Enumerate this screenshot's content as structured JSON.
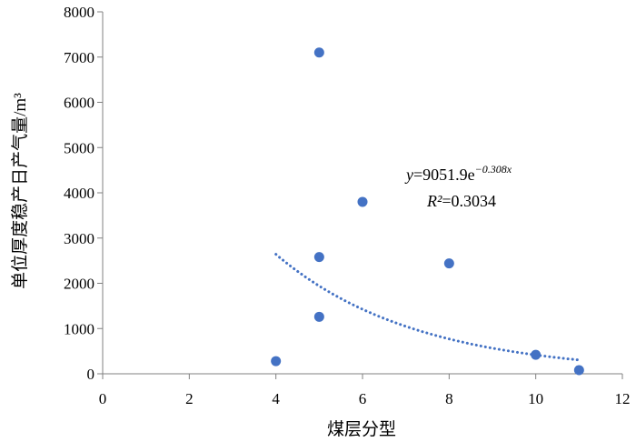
{
  "chart_data": {
    "type": "scatter",
    "title": "",
    "xlabel": "煤层分型",
    "ylabel": "单位厚度稳产日产气量/m³",
    "xlim": [
      0,
      12
    ],
    "ylim": [
      0,
      8000
    ],
    "xticks": [
      0,
      2,
      4,
      6,
      8,
      10,
      12
    ],
    "yticks": [
      0,
      1000,
      2000,
      3000,
      4000,
      5000,
      6000,
      7000,
      8000
    ],
    "grid": false,
    "series": [
      {
        "name": "data",
        "x": [
          4,
          5,
          5,
          5,
          6,
          8,
          10,
          11
        ],
        "y": [
          280,
          7100,
          2580,
          1260,
          3800,
          2440,
          420,
          80
        ]
      }
    ],
    "trendline": {
      "type": "exponential",
      "a": 9051.9,
      "b": -0.308,
      "x_from": 4,
      "x_to": 11
    },
    "annotation": {
      "equation_prefix": "y",
      "equation_body": "=9051.9e",
      "equation_exponent": "−0.308x",
      "r2_prefix": "R²",
      "r2_value": "=0.3034"
    },
    "colors": {
      "marker": "#4472C4",
      "trendline": "#4472C4",
      "axis": "#808080"
    }
  }
}
